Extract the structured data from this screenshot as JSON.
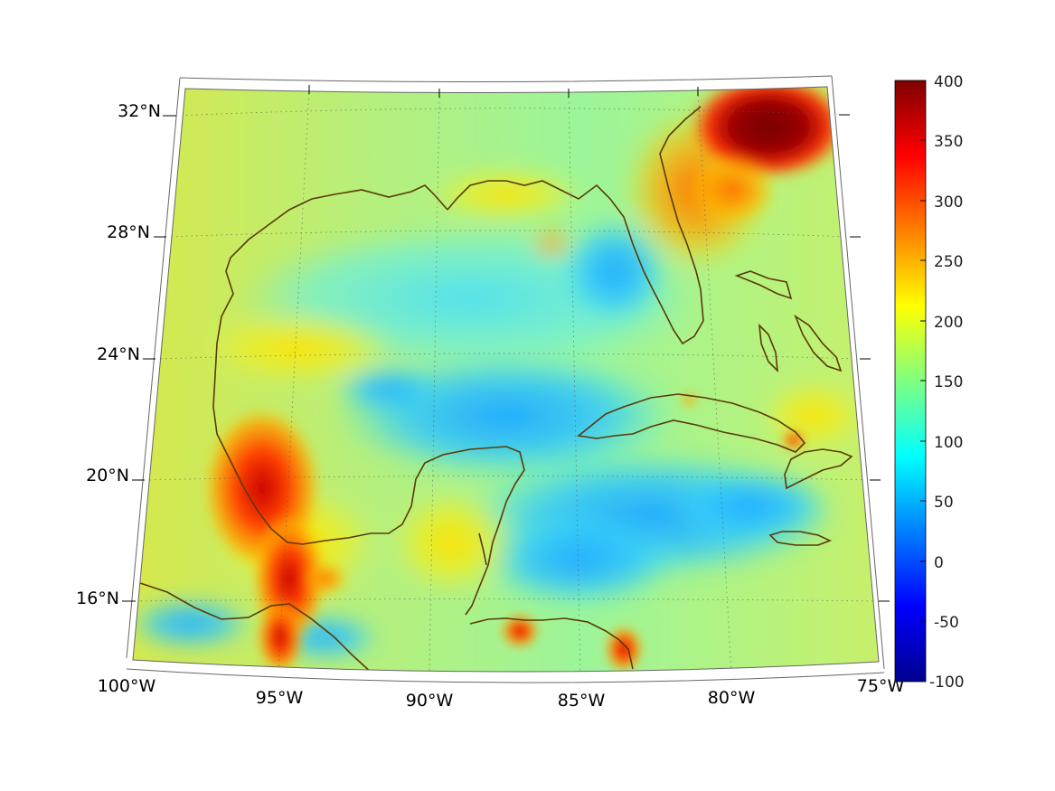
{
  "map": {
    "longitude_labels": [
      "100°W",
      "95°W",
      "90°W",
      "85°W",
      "80°W",
      "75°W"
    ],
    "latitude_labels": [
      "32°N",
      "28°N",
      "24°N",
      "20°N",
      "16°N"
    ],
    "coastline_color": "#5a3a0a",
    "frame_color": "#666666",
    "grid_style": "dotted"
  },
  "colorbar": {
    "tick_labels": [
      "400",
      "350",
      "300",
      "250",
      "200",
      "150",
      "100",
      "50",
      "0",
      "-50",
      "-100"
    ],
    "min": -100,
    "max": 400,
    "colormap": "jet"
  },
  "chart_data": {
    "type": "heatmap",
    "colormap": "jet",
    "range": [
      -100,
      400
    ],
    "x_ticks": [
      "100°W",
      "95°W",
      "90°W",
      "85°W",
      "80°W",
      "75°W"
    ],
    "y_ticks": [
      "32°N",
      "28°N",
      "24°N",
      "20°N",
      "16°N"
    ]
  }
}
